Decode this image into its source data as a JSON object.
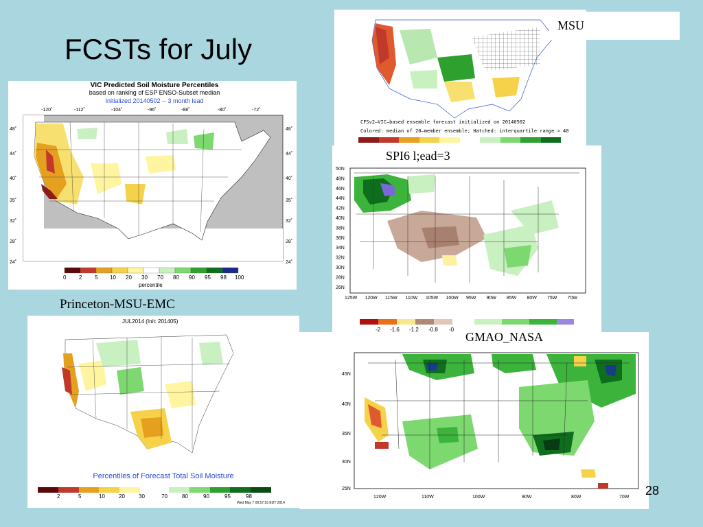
{
  "slide": {
    "title": "FCSTs for July",
    "page_number": "28"
  },
  "vic": {
    "title": "VIC Predicted Soil Moisture Percentiles",
    "subtitle": "based on ranking of ESP ENSO-Subset median",
    "init": "Initialized 20140502 -- 3 month lead",
    "lon_labels": [
      "-120˚",
      "-112˚",
      "-104˚",
      "-96˚",
      "-88˚",
      "-80˚",
      "-72˚"
    ],
    "lat_labels": [
      "48˚",
      "44˚",
      "40˚",
      "35˚",
      "32˚",
      "28˚",
      "24˚"
    ],
    "legend_labels": [
      "0",
      "2",
      "5",
      "10",
      "20",
      "30",
      "70",
      "80",
      "90",
      "95",
      "98",
      "100"
    ],
    "legend_unit": "percentile",
    "colors": [
      "#5a0a0a",
      "#c0392b",
      "#e6a020",
      "#f5d24a",
      "#fff5a0",
      "#ffffff",
      "#c8f0c0",
      "#7dd870",
      "#2ea02e",
      "#0f6e1e",
      "#1a2a8a"
    ]
  },
  "msu": {
    "label": "MSU",
    "caption1": "CFSv2–VIC–based ensemble forecast initialized on 20140502",
    "caption2": "Colored: median of 20–member ensemble; Hatched: interquartile range > 40"
  },
  "spi": {
    "label": "SPI6 l;ead=3",
    "lat_labels": [
      "50N",
      "48N",
      "46N",
      "44N",
      "42N",
      "40N",
      "38N",
      "36N",
      "34N",
      "32N",
      "30N",
      "28N",
      "26N"
    ],
    "lon_labels": [
      "125W",
      "120W",
      "115W",
      "110W",
      "105W",
      "100W",
      "95W",
      "90W",
      "85W",
      "80W",
      "75W",
      "70W"
    ],
    "legend_labels": [
      "-2",
      "-1.6",
      "-1.2",
      "-0.8",
      "-0"
    ]
  },
  "pme": {
    "label": "Princeton-MSU-EMC",
    "header": "JUL2014 (Init: 201405)",
    "caption": "Percentiles of Forecast Total Soil Moisture",
    "legend_labels": [
      "2",
      "5",
      "10",
      "20",
      "30",
      "70",
      "80",
      "90",
      "95",
      "98"
    ],
    "footer": "Wed May  7 09:57:53 EDT 2014"
  },
  "gmao": {
    "label": "GMAO_NASA",
    "lat_labels": [
      "45N",
      "40N",
      "35N",
      "30N",
      "25N"
    ],
    "lon_labels": [
      "120W",
      "110W",
      "100W",
      "90W",
      "80W",
      "70W"
    ]
  }
}
